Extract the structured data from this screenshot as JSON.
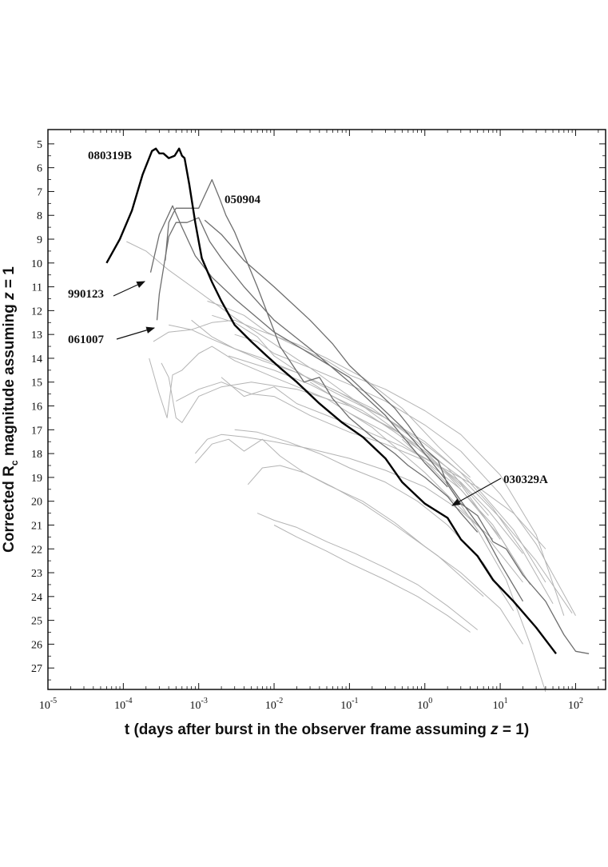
{
  "chart_data": {
    "type": "line",
    "title": "",
    "xlabel": {
      "pre": "t (days after burst in the observer frame assuming ",
      "italic": "z",
      "post": " = 1)"
    },
    "ylabel": {
      "pre": "Corrected R",
      "sub": "c",
      "post": "  magnitude assuming ",
      "italic": "z",
      "post2": " = 1"
    },
    "xscale": "log",
    "x_range": [
      1e-05,
      250
    ],
    "y_range": [
      4.4,
      27.9
    ],
    "y_inverted": true,
    "x_ticks": [
      {
        "value": 1e-05,
        "base": "10",
        "exp": "-5"
      },
      {
        "value": 0.0001,
        "base": "10",
        "exp": "-4"
      },
      {
        "value": 0.001,
        "base": "10",
        "exp": "-3"
      },
      {
        "value": 0.01,
        "base": "10",
        "exp": "-2"
      },
      {
        "value": 0.1,
        "base": "10",
        "exp": "-1"
      },
      {
        "value": 1,
        "base": "10",
        "exp": "0"
      },
      {
        "value": 10,
        "base": "10",
        "exp": "1"
      },
      {
        "value": 100,
        "base": "10",
        "exp": "2"
      }
    ],
    "y_ticks": [
      "5",
      "6",
      "7",
      "8",
      "9",
      "10",
      "11",
      "12",
      "13",
      "14",
      "15",
      "16",
      "17",
      "18",
      "19",
      "20",
      "21",
      "22",
      "23",
      "24",
      "25",
      "26",
      "27"
    ],
    "series": [
      {
        "label": "080319B",
        "style": "bold-black",
        "x": [
          6e-05,
          9e-05,
          0.00013,
          0.00018,
          0.00024,
          0.00027,
          0.0003,
          0.00034,
          0.0004,
          0.00048,
          0.00055,
          0.0006,
          0.00065,
          0.00075,
          0.0009,
          0.0011,
          0.0015,
          0.002,
          0.003,
          0.005,
          0.008,
          0.012,
          0.02,
          0.04,
          0.08,
          0.15,
          0.3,
          0.5,
          1,
          2,
          3,
          5,
          8,
          15,
          30,
          55
        ],
        "y": [
          10.0,
          9.0,
          7.8,
          6.3,
          5.3,
          5.2,
          5.4,
          5.4,
          5.6,
          5.5,
          5.2,
          5.5,
          5.6,
          6.7,
          8.3,
          9.8,
          10.8,
          11.6,
          12.6,
          13.3,
          13.9,
          14.4,
          15.0,
          15.9,
          16.7,
          17.3,
          18.2,
          19.2,
          20.1,
          20.7,
          21.6,
          22.3,
          23.3,
          24.2,
          25.3,
          26.4
        ]
      },
      {
        "label": "050904",
        "style": "dark-gray",
        "x": [
          0.00036,
          0.0004,
          0.00046,
          0.0005,
          0.0007,
          0.001,
          0.0015,
          0.0019,
          0.0023,
          0.003,
          0.006,
          0.012,
          0.025,
          0.04,
          0.06,
          0.1,
          0.2,
          0.4,
          0.6,
          1,
          2,
          3,
          5
        ],
        "y": [
          9.9,
          8.3,
          7.9,
          7.7,
          7.7,
          7.7,
          6.5,
          7.3,
          8.0,
          8.7,
          11.0,
          13.5,
          15.0,
          14.8,
          15.7,
          16.5,
          17.3,
          18.0,
          18.5,
          19.0,
          19.8,
          20.5,
          21.3
        ]
      },
      {
        "label": "990123",
        "style": "dark-gray",
        "x": [
          0.00023,
          0.0003,
          0.00045,
          0.0006,
          0.0009,
          0.0015,
          0.003,
          0.01,
          0.1,
          0.5,
          1,
          2,
          6,
          10,
          20
        ],
        "y": [
          10.4,
          8.8,
          7.6,
          8.5,
          9.7,
          10.6,
          11.5,
          12.9,
          14.8,
          16.9,
          18.0,
          19.2,
          21.3,
          22.6,
          24.2
        ]
      },
      {
        "label": "061007",
        "style": "dark-gray",
        "x": [
          0.00028,
          0.0003,
          0.00035,
          0.0004,
          0.0005,
          0.0007,
          0.001,
          0.0014,
          0.002,
          0.004,
          0.01,
          0.03,
          0.1,
          0.3,
          1,
          2
        ],
        "y": [
          12.4,
          11.3,
          10.0,
          8.9,
          8.3,
          8.3,
          8.1,
          9.1,
          9.8,
          11.0,
          12.4,
          13.6,
          15.0,
          16.4,
          18.4,
          19.4
        ]
      },
      {
        "label": "030329A",
        "style": "dark-gray",
        "x": [
          0.0012,
          0.002,
          0.004,
          0.01,
          0.03,
          0.06,
          0.1,
          0.2,
          0.4,
          0.6,
          1,
          1.5,
          2,
          3,
          5,
          8,
          12,
          20,
          40,
          70,
          100,
          150
        ],
        "y": [
          8.2,
          8.8,
          9.9,
          11.0,
          12.4,
          13.4,
          14.3,
          15.2,
          16.1,
          16.8,
          17.8,
          18.3,
          19.3,
          20.1,
          20.6,
          21.7,
          22.0,
          23.1,
          24.2,
          25.6,
          26.3,
          26.4
        ]
      },
      {
        "label": "",
        "style": "light",
        "x": [
          0.00011,
          0.0002,
          0.0004,
          0.001,
          0.003,
          0.01,
          0.03,
          0.1,
          0.3,
          1,
          3
        ],
        "y": [
          9.1,
          9.5,
          10.3,
          11.2,
          12.3,
          13.4,
          14.4,
          15.6,
          16.7,
          17.9,
          19.4
        ]
      },
      {
        "label": "",
        "style": "light",
        "x": [
          0.00025,
          0.0004,
          0.0008,
          0.0015,
          0.003,
          0.006,
          0.02,
          0.05,
          0.15,
          0.5,
          1.5,
          4
        ],
        "y": [
          13.3,
          12.9,
          12.8,
          12.5,
          12.4,
          12.8,
          13.4,
          14.0,
          14.8,
          16.1,
          17.7,
          19.0
        ]
      },
      {
        "label": "",
        "style": "light",
        "x": [
          0.00022,
          0.0003,
          0.00038,
          0.00045,
          0.0006,
          0.001,
          0.0015,
          0.003,
          0.01,
          0.05,
          0.2,
          1,
          5,
          20
        ],
        "y": [
          14.0,
          15.5,
          16.5,
          14.7,
          14.5,
          13.8,
          13.5,
          14.1,
          14.8,
          15.7,
          16.9,
          18.8,
          21.0,
          23.4
        ]
      },
      {
        "label": "",
        "style": "light",
        "x": [
          0.00032,
          0.0004,
          0.0005,
          0.0006,
          0.001,
          0.002,
          0.005,
          0.02,
          0.1,
          0.5,
          2,
          8,
          25
        ],
        "y": [
          14.2,
          14.8,
          16.5,
          16.7,
          15.6,
          15.2,
          15.0,
          15.3,
          16.0,
          17.2,
          18.9,
          21.0,
          23.5
        ]
      },
      {
        "label": "",
        "style": "light",
        "x": [
          0.0013,
          0.002,
          0.004,
          0.008,
          0.02,
          0.05,
          0.1,
          0.3,
          1,
          3,
          10,
          30,
          70
        ],
        "y": [
          11.6,
          11.8,
          12.2,
          12.9,
          13.5,
          14.1,
          14.7,
          15.3,
          16.2,
          17.2,
          18.9,
          21.4,
          24.8
        ]
      },
      {
        "label": "",
        "style": "light",
        "x": [
          0.0008,
          0.0015,
          0.003,
          0.007,
          0.02,
          0.07,
          0.3,
          1,
          4,
          15,
          40
        ],
        "y": [
          12.4,
          13.1,
          13.6,
          14.0,
          14.6,
          15.4,
          16.5,
          17.6,
          19.1,
          21.2,
          23.4
        ]
      },
      {
        "label": "",
        "style": "light",
        "x": [
          0.0009,
          0.0013,
          0.002,
          0.004,
          0.01,
          0.03,
          0.1,
          0.3,
          1,
          3,
          8
        ],
        "y": [
          18.0,
          17.4,
          17.2,
          17.3,
          17.5,
          17.8,
          18.2,
          18.7,
          19.4,
          20.4,
          21.6
        ]
      },
      {
        "label": "",
        "style": "light",
        "x": [
          0.0009,
          0.0015,
          0.0025,
          0.004,
          0.007,
          0.012,
          0.025,
          0.06,
          0.15,
          0.4,
          1.5,
          6
        ],
        "y": [
          18.4,
          17.6,
          17.4,
          17.9,
          17.4,
          18.1,
          18.8,
          19.4,
          20.1,
          21.0,
          22.3,
          24.0
        ]
      },
      {
        "label": "",
        "style": "light",
        "x": [
          0.0045,
          0.007,
          0.012,
          0.025,
          0.05,
          0.15,
          0.4,
          1,
          3,
          10,
          20
        ],
        "y": [
          19.3,
          18.6,
          18.5,
          18.8,
          19.3,
          20.0,
          20.9,
          21.9,
          23.0,
          24.5,
          26.0
        ]
      },
      {
        "label": "",
        "style": "light",
        "x": [
          0.006,
          0.01,
          0.02,
          0.05,
          0.12,
          0.3,
          0.8,
          2,
          5
        ],
        "y": [
          20.5,
          20.8,
          21.1,
          21.7,
          22.2,
          22.8,
          23.5,
          24.4,
          25.4
        ]
      },
      {
        "label": "",
        "style": "light",
        "x": [
          0.01,
          0.02,
          0.05,
          0.1,
          0.3,
          0.8,
          2,
          4
        ],
        "y": [
          21.0,
          21.5,
          22.1,
          22.6,
          23.3,
          24.0,
          24.8,
          25.5
        ]
      },
      {
        "label": "",
        "style": "light",
        "x": [
          0.003,
          0.006,
          0.015,
          0.04,
          0.1,
          0.3,
          0.8,
          2,
          6,
          15
        ],
        "y": [
          17.0,
          17.1,
          17.5,
          18.0,
          18.6,
          19.2,
          20.0,
          21.0,
          22.6,
          24.6
        ]
      },
      {
        "label": "",
        "style": "light",
        "x": [
          0.0015,
          0.003,
          0.006,
          0.01,
          0.03,
          0.08,
          0.3,
          1,
          3,
          8,
          20,
          50
        ],
        "y": [
          12.2,
          12.5,
          13.1,
          13.9,
          14.9,
          15.6,
          16.5,
          17.5,
          18.8,
          20.3,
          22.1,
          24.3
        ]
      },
      {
        "label": "",
        "style": "light",
        "x": [
          0.002,
          0.004,
          0.01,
          0.02,
          0.05,
          0.15,
          0.5,
          1.5,
          5,
          15,
          40
        ],
        "y": [
          14.8,
          15.6,
          15.2,
          15.9,
          16.4,
          17.0,
          17.7,
          18.5,
          19.4,
          20.5,
          22.0
        ]
      },
      {
        "label": "",
        "style": "light",
        "x": [
          0.003,
          0.006,
          0.01,
          0.03,
          0.1,
          0.3,
          1,
          3,
          10,
          30,
          100
        ],
        "y": [
          13.0,
          13.3,
          13.8,
          14.4,
          15.1,
          15.8,
          16.8,
          17.9,
          19.7,
          21.8,
          24.8
        ]
      },
      {
        "label": "",
        "style": "light",
        "x": [
          0.0005,
          0.001,
          0.002,
          0.005,
          0.01,
          0.03,
          0.1,
          0.3,
          1,
          3,
          10,
          25
        ],
        "y": [
          15.8,
          15.3,
          15.0,
          15.5,
          15.6,
          16.4,
          17.1,
          17.6,
          18.3,
          19.5,
          21.5,
          23.5
        ]
      },
      {
        "label": "",
        "style": "light",
        "x": [
          0.03,
          0.06,
          0.15,
          0.4,
          1,
          3,
          10,
          30,
          90
        ],
        "y": [
          15.0,
          15.6,
          16.3,
          17.0,
          17.9,
          19.0,
          20.7,
          22.5,
          24.7
        ]
      },
      {
        "label": "",
        "style": "light",
        "x": [
          0.1,
          0.3,
          0.7,
          1.5,
          3,
          7,
          20
        ],
        "y": [
          16.3,
          17.1,
          17.9,
          18.5,
          19.2,
          20.4,
          22.2
        ]
      },
      {
        "label": "",
        "style": "light",
        "x": [
          0.5,
          1,
          2,
          5,
          12,
          25,
          40
        ],
        "y": [
          17.4,
          18.3,
          19.3,
          21.2,
          23.3,
          26.0,
          28.0
        ]
      },
      {
        "label": "",
        "style": "light",
        "x": [
          0.0025,
          0.005,
          0.01,
          0.03,
          0.07,
          0.15,
          0.4,
          1,
          3,
          10
        ],
        "y": [
          13.9,
          14.2,
          14.5,
          15.1,
          15.7,
          16.2,
          17.1,
          18.0,
          19.3,
          21.6
        ]
      },
      {
        "label": "",
        "style": "light",
        "x": [
          0.0004,
          0.0008,
          0.0015,
          0.003,
          0.007,
          0.02,
          0.06,
          0.2,
          0.6,
          2,
          7
        ],
        "y": [
          12.6,
          12.8,
          13.2,
          13.6,
          14.1,
          14.6,
          15.3,
          16.1,
          17.2,
          18.6,
          20.6
        ]
      }
    ],
    "annotations": [
      {
        "text": "080319B"
      },
      {
        "text": "050904"
      },
      {
        "text": "990123"
      },
      {
        "text": "061007"
      },
      {
        "text": "030329A"
      }
    ],
    "grid": false,
    "legend": "none"
  }
}
